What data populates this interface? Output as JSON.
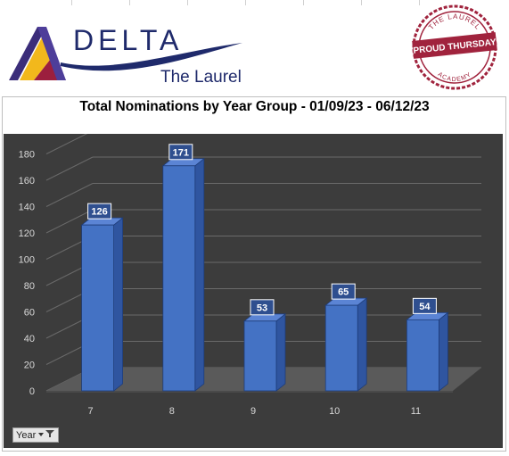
{
  "branding": {
    "logo_name": "DELTA",
    "logo_sub": "The Laurel",
    "seal_top": "THE LAUREL",
    "seal_center": "PROUD THURSDAY",
    "seal_bottom": "ACADEMY"
  },
  "filter": {
    "label": "Year"
  },
  "colors": {
    "bar": "#4472c4",
    "plot_bg": "#3c3c3c",
    "seal": "#a0233d",
    "logo_text": "#1f2a6b"
  },
  "chart_data": {
    "type": "bar",
    "title": "Total Nominations by Year Group - 01/09/23 - 06/12/23",
    "categories": [
      "7",
      "8",
      "9",
      "10",
      "11"
    ],
    "values": [
      126,
      171,
      53,
      65,
      54
    ],
    "yticks": [
      "0",
      "20",
      "40",
      "60",
      "80",
      "100",
      "120",
      "140",
      "160",
      "180"
    ],
    "ylim": [
      0,
      180
    ],
    "grid": true,
    "style": "3d-column"
  }
}
